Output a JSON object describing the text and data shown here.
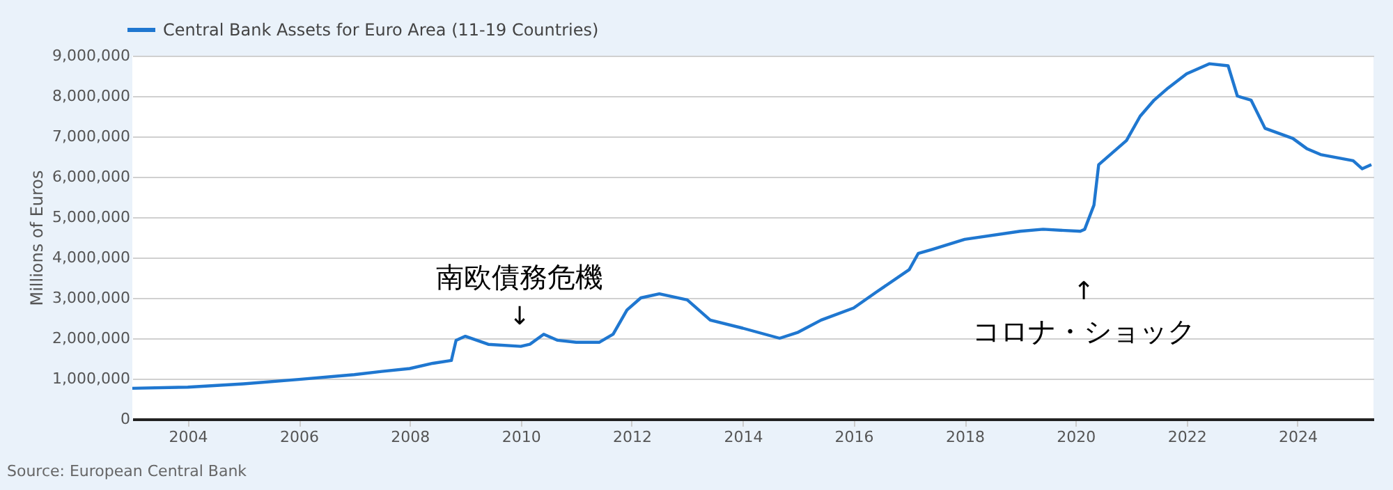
{
  "chart_data": {
    "type": "line",
    "ylabel": "Millions of Euros",
    "x": [
      "2003-01",
      "2004-01",
      "2005-01",
      "2006-01",
      "2007-01",
      "2007-07",
      "2008-01",
      "2008-06",
      "2008-10",
      "2008-11",
      "2009-01",
      "2009-06",
      "2010-01",
      "2010-03",
      "2010-06",
      "2010-09",
      "2011-01",
      "2011-06",
      "2011-09",
      "2011-12",
      "2012-03",
      "2012-07",
      "2013-01",
      "2013-06",
      "2014-01",
      "2014-09",
      "2015-01",
      "2015-06",
      "2016-01",
      "2016-06",
      "2017-01",
      "2017-03",
      "2017-06",
      "2018-01",
      "2019-01",
      "2019-06",
      "2020-02",
      "2020-03",
      "2020-05",
      "2020-06",
      "2020-12",
      "2021-03",
      "2021-06",
      "2021-09",
      "2022-01",
      "2022-06",
      "2022-10",
      "2022-12",
      "2023-03",
      "2023-06",
      "2023-12",
      "2024-03",
      "2024-06",
      "2025-01",
      "2025-03",
      "2025-05"
    ],
    "series": [
      {
        "name": "Central Bank Assets for Euro Area (11-19 Countries)",
        "color": "#1f77d0",
        "values": [
          760000,
          790000,
          870000,
          980000,
          1100000,
          1180000,
          1250000,
          1380000,
          1450000,
          1950000,
          2050000,
          1850000,
          1800000,
          1850000,
          2100000,
          1950000,
          1900000,
          1900000,
          2100000,
          2700000,
          3000000,
          3100000,
          2950000,
          2450000,
          2250000,
          2000000,
          2150000,
          2450000,
          2750000,
          3150000,
          3700000,
          4100000,
          4200000,
          4450000,
          4650000,
          4700000,
          4650000,
          4700000,
          5300000,
          6300000,
          6900000,
          7500000,
          7900000,
          8200000,
          8550000,
          8800000,
          8750000,
          8000000,
          7900000,
          7200000,
          6950000,
          6700000,
          6550000,
          6400000,
          6200000,
          6300000
        ]
      }
    ],
    "xlim": [
      "2003-01-01",
      "2025-05-15"
    ],
    "xticks": [
      "2004",
      "2006",
      "2008",
      "2010",
      "2012",
      "2014",
      "2016",
      "2018",
      "2020",
      "2022",
      "2024"
    ],
    "ylim": [
      0,
      9000000
    ],
    "yticks": [
      0,
      {
        "value": 1000000,
        "label": "1,000,000"
      },
      {
        "value": 2000000,
        "label": "2,000,000"
      },
      {
        "value": 3000000,
        "label": "3,000,000"
      },
      {
        "value": 4000000,
        "label": "4,000,000"
      },
      {
        "value": 5000000,
        "label": "5,000,000"
      },
      {
        "value": 6000000,
        "label": "6,000,000"
      },
      {
        "value": 7000000,
        "label": "7,000,000"
      },
      {
        "value": 8000000,
        "label": "8,000,000"
      },
      {
        "value": 9000000,
        "label": "9,000,000"
      }
    ],
    "grid": "y",
    "legend": "top left",
    "line_style": "solid",
    "marker": "none",
    "annotations": [
      "南欧債務危機",
      "↓",
      "↑",
      "コロナ・ショック",
      "Source: European Central Bank"
    ]
  }
}
